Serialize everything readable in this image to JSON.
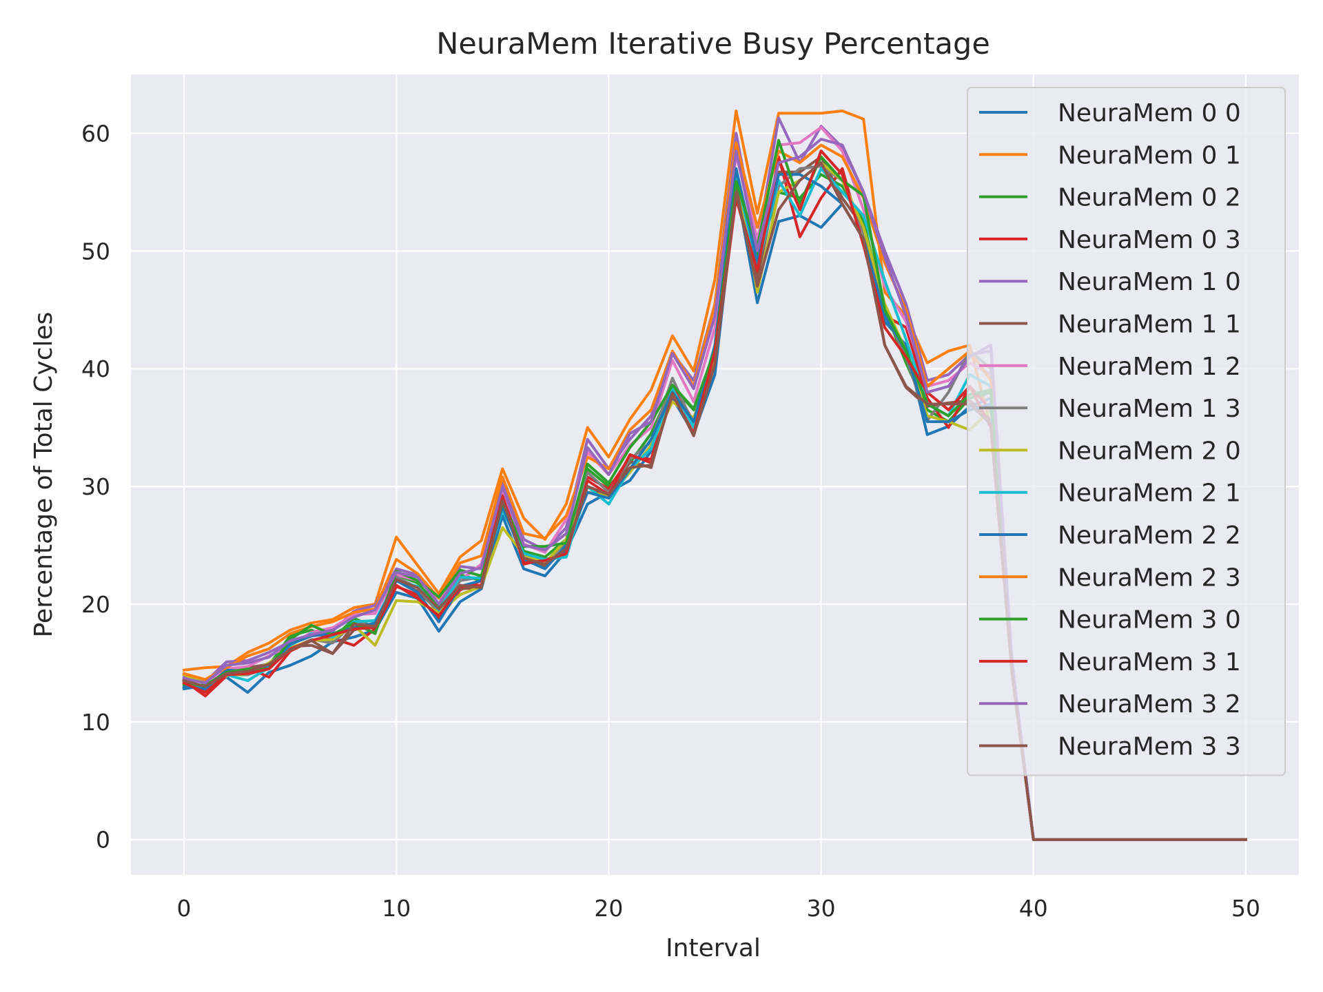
{
  "chart_data": {
    "type": "line",
    "title": "NeuraMem Iterative Busy Percentage",
    "xlabel": "Interval",
    "ylabel": "Percentage of Total Cycles",
    "xlim": [
      -2.5,
      52.5
    ],
    "ylim": [
      -3,
      65
    ],
    "xticks": [
      0,
      10,
      20,
      30,
      40,
      50
    ],
    "yticks": [
      0,
      10,
      20,
      30,
      40,
      50,
      60
    ],
    "grid": true,
    "legend_position": "top-right",
    "x": [
      0,
      1,
      2,
      3,
      4,
      5,
      6,
      7,
      8,
      9,
      10,
      11,
      12,
      13,
      14,
      15,
      16,
      17,
      18,
      19,
      20,
      21,
      22,
      23,
      24,
      25,
      26,
      27,
      28,
      29,
      30,
      31,
      32,
      33,
      34,
      35,
      36,
      37,
      38,
      39,
      40,
      41,
      42,
      43,
      44,
      45,
      46,
      47,
      48,
      49,
      50
    ],
    "series": [
      {
        "name": "NeuraMem 0 0",
        "color": "#1f77b4",
        "values": [
          12.8,
          13.1,
          13.8,
          12.5,
          14.2,
          14.8,
          15.6,
          16.8,
          17.2,
          17.8,
          21.0,
          20.5,
          17.7,
          20.2,
          21.3,
          27.5,
          23.0,
          22.4,
          24.5,
          28.5,
          29.5,
          30.5,
          33.0,
          37.5,
          34.5,
          39.5,
          55.5,
          45.6,
          52.5,
          53.0,
          52.0,
          54.0,
          51.0,
          44.0,
          42.0,
          34.4,
          35.1,
          36.8,
          37.5,
          15.0,
          0,
          0,
          0,
          0,
          0,
          0,
          0,
          0,
          0,
          0,
          0
        ]
      },
      {
        "name": "NeuraMem 0 1",
        "color": "#ff7f0e",
        "values": [
          14.4,
          14.6,
          14.7,
          15.9,
          16.7,
          17.8,
          18.4,
          18.7,
          19.7,
          20.0,
          25.7,
          23.3,
          20.9,
          24.0,
          25.4,
          31.5,
          27.3,
          25.5,
          28.5,
          35.0,
          32.5,
          35.7,
          38.2,
          42.8,
          39.8,
          47.6,
          61.9,
          53.2,
          61.7,
          61.7,
          61.7,
          61.9,
          61.2,
          46.5,
          44.5,
          40.5,
          41.5,
          42.0,
          35.0,
          14.0,
          0,
          0,
          0,
          0,
          0,
          0,
          0,
          0,
          0,
          0,
          0
        ]
      },
      {
        "name": "NeuraMem 0 2",
        "color": "#2ca02c",
        "values": [
          13.0,
          12.9,
          14.0,
          14.0,
          14.8,
          17.3,
          17.8,
          17.0,
          18.8,
          18.0,
          22.5,
          21.8,
          19.8,
          22.5,
          22.0,
          29.0,
          24.5,
          24.0,
          25.5,
          31.5,
          30.0,
          32.0,
          34.5,
          38.5,
          36.5,
          41.5,
          56.5,
          49.5,
          55.0,
          54.5,
          56.5,
          55.5,
          52.5,
          45.0,
          40.5,
          36.5,
          35.5,
          37.5,
          38.0,
          14.5,
          0,
          0,
          0,
          0,
          0,
          0,
          0,
          0,
          0,
          0,
          0
        ]
      },
      {
        "name": "NeuraMem 0 3",
        "color": "#d62728",
        "values": [
          13.5,
          12.2,
          13.9,
          14.6,
          13.8,
          16.0,
          16.9,
          17.1,
          16.5,
          17.9,
          21.5,
          20.8,
          18.7,
          21.2,
          22.0,
          29.5,
          23.4,
          23.8,
          24.2,
          30.8,
          29.8,
          32.5,
          32.3,
          38.6,
          35.5,
          40.5,
          54.5,
          48.0,
          58.0,
          51.2,
          54.5,
          57.0,
          50.5,
          44.5,
          43.5,
          37.5,
          35.0,
          38.5,
          36.5,
          14.2,
          0,
          0,
          0,
          0,
          0,
          0,
          0,
          0,
          0,
          0,
          0
        ]
      },
      {
        "name": "NeuraMem 1 0",
        "color": "#9467bd",
        "values": [
          13.8,
          13.4,
          15.1,
          15.2,
          15.9,
          16.8,
          17.3,
          17.7,
          19.4,
          19.9,
          23.0,
          22.5,
          20.0,
          23.2,
          23.0,
          30.5,
          25.5,
          24.6,
          26.5,
          34.0,
          31.5,
          34.0,
          36.0,
          41.3,
          39.0,
          45.5,
          60.0,
          50.5,
          61.3,
          57.5,
          60.6,
          58.8,
          55.0,
          50.0,
          45.5,
          39.0,
          39.5,
          41.2,
          41.5,
          14.8,
          0,
          0,
          0,
          0,
          0,
          0,
          0,
          0,
          0,
          0,
          0
        ]
      },
      {
        "name": "NeuraMem 1 1",
        "color": "#8c564b",
        "values": [
          13.6,
          12.9,
          14.3,
          14.6,
          14.9,
          16.4,
          16.5,
          15.8,
          17.8,
          18.3,
          22.0,
          21.1,
          19.4,
          21.3,
          21.4,
          28.7,
          24.0,
          23.2,
          24.9,
          30.0,
          29.1,
          32.1,
          31.6,
          38.2,
          34.3,
          40.6,
          55.5,
          47.5,
          56.7,
          56.7,
          58.0,
          54.5,
          52.0,
          42.0,
          38.4,
          36.8,
          37.1,
          37.3,
          35.6,
          14.0,
          0,
          0,
          0,
          0,
          0,
          0,
          0,
          0,
          0,
          0,
          0
        ]
      },
      {
        "name": "NeuraMem 1 2",
        "color": "#e377c2",
        "values": [
          13.3,
          13.0,
          14.5,
          14.7,
          15.6,
          16.5,
          17.6,
          18.0,
          19.1,
          19.2,
          22.5,
          22.0,
          20.5,
          22.0,
          23.4,
          29.7,
          25.1,
          24.4,
          27.2,
          32.9,
          31.0,
          33.5,
          35.0,
          40.7,
          37.2,
          43.5,
          58.2,
          51.0,
          59.0,
          59.2,
          60.5,
          58.5,
          53.5,
          47.0,
          44.0,
          38.5,
          39.0,
          40.5,
          39.5,
          14.6,
          0,
          0,
          0,
          0,
          0,
          0,
          0,
          0,
          0,
          0,
          0
        ]
      },
      {
        "name": "NeuraMem 1 3",
        "color": "#7f7f7f",
        "values": [
          13.4,
          12.7,
          14.2,
          14.0,
          14.6,
          16.2,
          17.0,
          16.7,
          18.4,
          18.2,
          22.3,
          21.4,
          19.2,
          22.0,
          22.3,
          28.5,
          24.1,
          23.5,
          25.3,
          31.2,
          29.5,
          32.3,
          33.8,
          39.2,
          35.2,
          41.8,
          56.6,
          49.0,
          55.5,
          57.0,
          57.2,
          56.0,
          51.5,
          44.8,
          41.0,
          35.6,
          38.0,
          41.5,
          40.0,
          14.4,
          0,
          0,
          0,
          0,
          0,
          0,
          0,
          0,
          0,
          0,
          0
        ]
      },
      {
        "name": "NeuraMem 2 0",
        "color": "#bcbd22",
        "values": [
          14.0,
          13.3,
          13.9,
          14.1,
          15.0,
          16.3,
          16.9,
          17.0,
          18.2,
          16.5,
          20.3,
          20.2,
          19.3,
          20.8,
          21.5,
          26.5,
          24.2,
          23.5,
          25.5,
          29.5,
          29.2,
          31.2,
          33.5,
          37.2,
          35.8,
          41.0,
          57.0,
          46.5,
          55.0,
          56.0,
          57.5,
          56.0,
          52.0,
          45.5,
          41.5,
          36.0,
          35.5,
          34.8,
          36.5,
          14.3,
          0,
          0,
          0,
          0,
          0,
          0,
          0,
          0,
          0,
          0,
          0
        ]
      },
      {
        "name": "NeuraMem 2 1",
        "color": "#17becf",
        "values": [
          13.2,
          13.0,
          14.0,
          13.5,
          14.6,
          16.5,
          17.5,
          17.2,
          18.5,
          18.6,
          22.0,
          21.5,
          19.5,
          22.3,
          22.2,
          28.0,
          24.3,
          23.8,
          24.0,
          30.0,
          28.5,
          31.5,
          33.2,
          38.3,
          35.0,
          42.0,
          56.5,
          48.5,
          56.0,
          53.0,
          57.0,
          55.0,
          53.0,
          47.5,
          42.5,
          37.0,
          36.0,
          39.5,
          38.5,
          14.5,
          0,
          0,
          0,
          0,
          0,
          0,
          0,
          0,
          0,
          0,
          0
        ]
      },
      {
        "name": "NeuraMem 2 2",
        "color": "#1f77b4",
        "values": [
          13.0,
          12.8,
          14.4,
          14.3,
          14.8,
          16.6,
          17.3,
          17.5,
          18.0,
          18.4,
          22.0,
          21.0,
          18.5,
          21.5,
          22.0,
          28.3,
          23.8,
          23.0,
          25.0,
          29.5,
          29.0,
          31.5,
          34.0,
          38.0,
          35.5,
          42.0,
          57.0,
          49.0,
          56.5,
          56.5,
          55.5,
          54.0,
          51.0,
          44.5,
          41.5,
          35.5,
          35.5,
          36.5,
          37.0,
          14.2,
          0,
          0,
          0,
          0,
          0,
          0,
          0,
          0,
          0,
          0,
          0
        ]
      },
      {
        "name": "NeuraMem 2 3",
        "color": "#ff7f0e",
        "values": [
          14.1,
          13.6,
          14.6,
          15.6,
          16.2,
          17.5,
          18.1,
          18.5,
          19.3,
          19.6,
          23.8,
          22.6,
          20.5,
          23.5,
          24.1,
          30.8,
          26.0,
          25.6,
          27.5,
          32.5,
          31.5,
          34.8,
          36.5,
          41.5,
          38.5,
          45.5,
          59.2,
          52.0,
          58.5,
          57.5,
          59.0,
          58.0,
          54.5,
          49.0,
          45.0,
          38.5,
          40.0,
          41.5,
          39.0,
          14.7,
          0,
          0,
          0,
          0,
          0,
          0,
          0,
          0,
          0,
          0,
          0
        ]
      },
      {
        "name": "NeuraMem 3 0",
        "color": "#2ca02c",
        "values": [
          13.2,
          13.1,
          14.2,
          14.5,
          14.5,
          17.0,
          18.2,
          17.4,
          18.4,
          17.5,
          22.8,
          22.0,
          20.6,
          22.9,
          22.4,
          28.6,
          24.9,
          24.9,
          25.2,
          31.9,
          30.3,
          33.3,
          35.5,
          38.6,
          36.6,
          41.6,
          55.9,
          50.3,
          59.4,
          54.0,
          58.0,
          56.0,
          54.7,
          45.0,
          41.5,
          37.0,
          36.0,
          37.8,
          38.2,
          14.6,
          0,
          0,
          0,
          0,
          0,
          0,
          0,
          0,
          0,
          0,
          0
        ]
      },
      {
        "name": "NeuraMem 3 1",
        "color": "#d62728",
        "values": [
          13.3,
          12.5,
          14.0,
          14.1,
          14.5,
          16.2,
          16.9,
          17.4,
          17.9,
          18.0,
          21.6,
          20.5,
          19.0,
          21.5,
          21.6,
          29.2,
          23.5,
          23.7,
          24.3,
          30.5,
          29.3,
          32.7,
          32.0,
          37.8,
          34.5,
          41.5,
          54.5,
          48.3,
          57.8,
          53.5,
          58.5,
          56.5,
          50.5,
          43.5,
          41.0,
          38.0,
          36.5,
          38.5,
          35.0,
          14.1,
          0,
          0,
          0,
          0,
          0,
          0,
          0,
          0,
          0,
          0,
          0
        ]
      },
      {
        "name": "NeuraMem 3 2",
        "color": "#9467bd",
        "values": [
          13.7,
          13.3,
          14.8,
          15.0,
          15.5,
          16.9,
          17.4,
          17.8,
          18.9,
          19.5,
          22.7,
          22.3,
          20.0,
          22.6,
          23.1,
          30.0,
          25.0,
          24.6,
          26.0,
          33.3,
          31.0,
          34.5,
          35.5,
          41.3,
          38.3,
          44.5,
          58.5,
          50.0,
          57.5,
          58.0,
          59.5,
          59.0,
          55.0,
          49.5,
          44.5,
          38.0,
          38.5,
          41.0,
          42.0,
          14.9,
          0,
          0,
          0,
          0,
          0,
          0,
          0,
          0,
          0,
          0,
          0
        ]
      },
      {
        "name": "NeuraMem 3 3",
        "color": "#8c564b",
        "values": [
          13.5,
          13.0,
          14.1,
          14.3,
          14.9,
          16.1,
          16.9,
          15.8,
          18.3,
          18.1,
          22.1,
          21.4,
          19.6,
          21.6,
          21.4,
          28.8,
          23.9,
          23.4,
          24.7,
          30.0,
          29.3,
          31.6,
          31.8,
          37.9,
          34.3,
          40.4,
          55.0,
          47.0,
          53.5,
          56.0,
          57.5,
          54.0,
          51.0,
          42.0,
          38.5,
          37.0,
          37.0,
          37.0,
          35.3,
          14.0,
          0,
          0,
          0,
          0,
          0,
          0,
          0,
          0,
          0,
          0,
          0
        ]
      }
    ]
  }
}
